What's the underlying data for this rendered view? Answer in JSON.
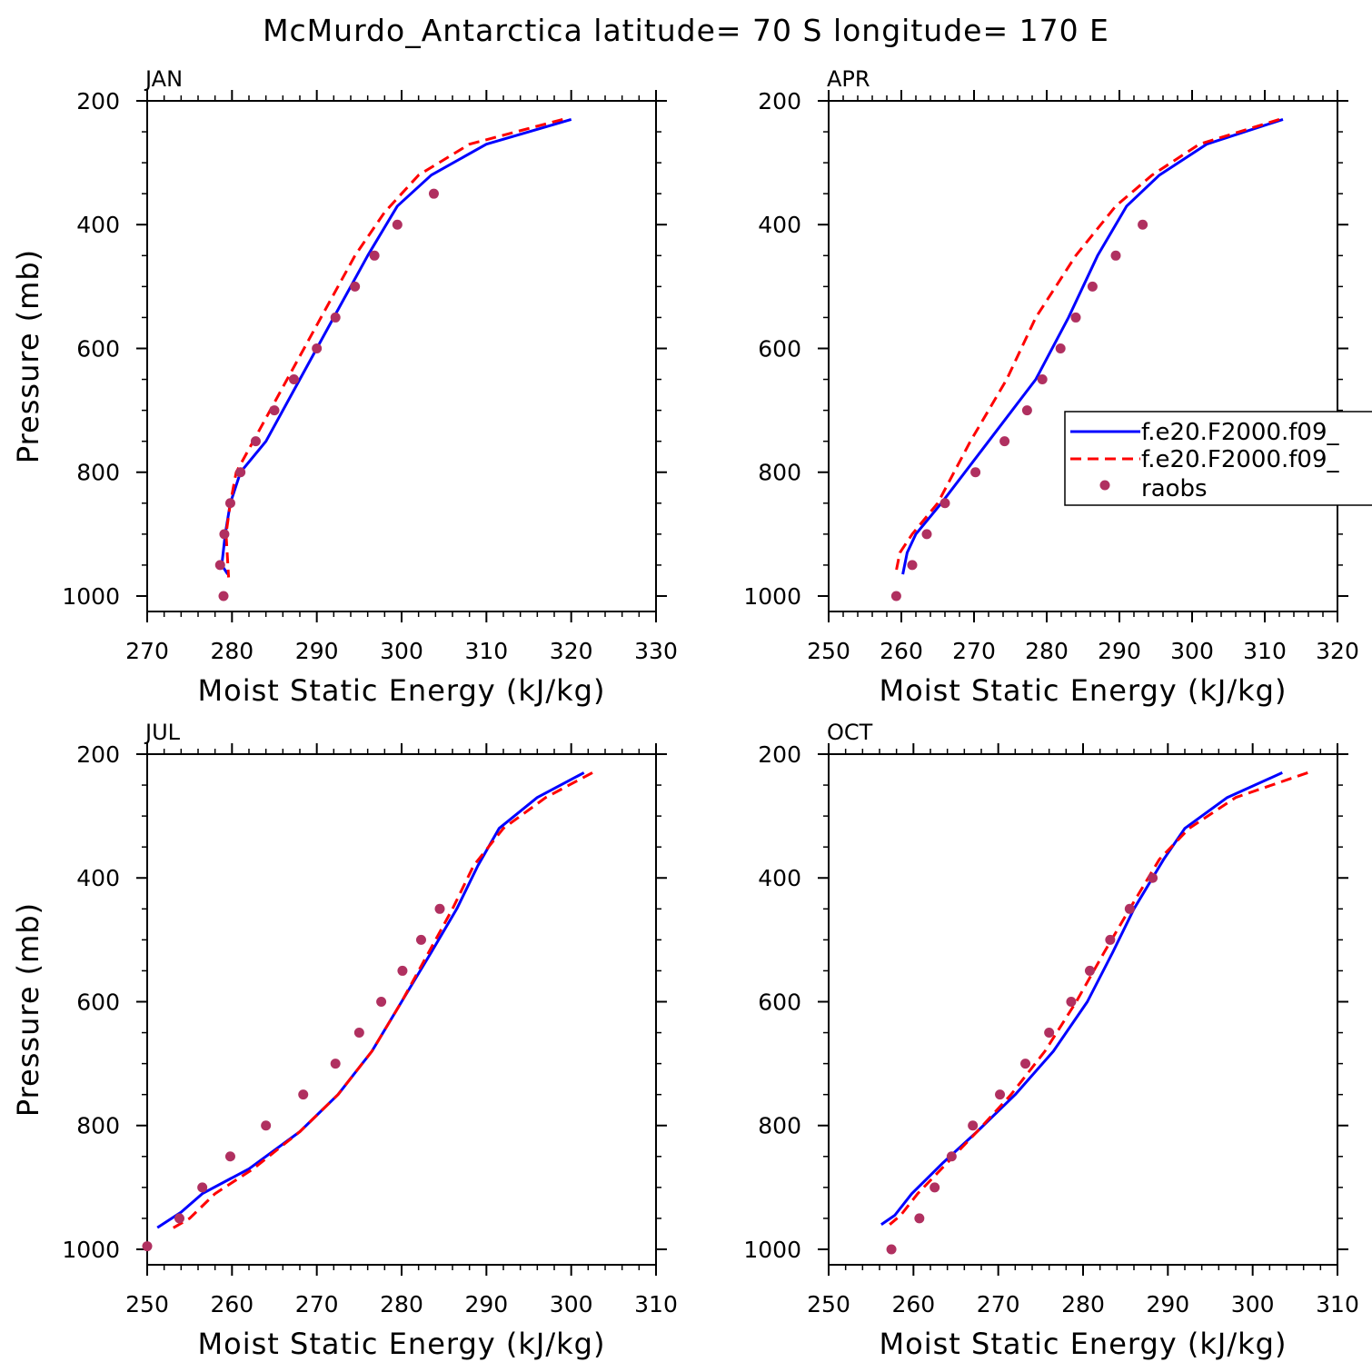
{
  "title": "McMurdo_Antarctica  latitude= 70 S longitude= 170 E",
  "colors": {
    "series1": "#0000ff",
    "series2": "#ff0000",
    "raobs": "#b03060"
  },
  "legend": {
    "entries": [
      "f.e20.F2000.f09_",
      "f.e20.F2000.f09_",
      "raobs"
    ],
    "placement": "right-middle of APR panel"
  },
  "chart_data": [
    {
      "type": "line",
      "panel": "JAN",
      "xlabel": "Moist Static Energy (kJ/kg)",
      "ylabel": "Pressure (mb)",
      "xlim": [
        270,
        330
      ],
      "ylim": [
        1025,
        200
      ],
      "xticks": [
        270,
        280,
        290,
        300,
        310,
        320,
        330
      ],
      "yticks": [
        200,
        400,
        600,
        800,
        1000
      ],
      "y_inverted": true,
      "series": [
        {
          "style": "solid",
          "color": "#0000ff",
          "x": [
            320,
            310,
            303.5,
            299.5,
            296,
            292,
            288,
            284,
            281,
            279.8,
            279.2,
            278.8,
            279.5
          ],
          "y": [
            230,
            270,
            320,
            370,
            450,
            550,
            650,
            750,
            800,
            850,
            900,
            950,
            965
          ]
        },
        {
          "style": "dashed",
          "color": "#ff0000",
          "x": [
            319,
            308,
            302,
            298,
            294.5,
            290.5,
            286.5,
            282.5,
            280.5,
            279.8,
            279.3,
            279.6
          ],
          "y": [
            230,
            270,
            320,
            380,
            450,
            550,
            650,
            750,
            800,
            850,
            900,
            970
          ]
        },
        {
          "style": "markers",
          "color": "#b03060",
          "x": [
            303.8,
            299.5,
            296.8,
            294.5,
            292.2,
            290,
            287.3,
            285,
            282.8,
            281,
            279.8,
            279.1,
            278.6,
            279
          ],
          "y": [
            350,
            400,
            450,
            500,
            550,
            600,
            650,
            700,
            750,
            800,
            850,
            900,
            950,
            1000
          ]
        }
      ]
    },
    {
      "type": "line",
      "panel": "APR",
      "xlabel": "Moist Static Energy (kJ/kg)",
      "ylabel": "",
      "xlim": [
        250,
        320
      ],
      "ylim": [
        1025,
        200
      ],
      "xticks": [
        250,
        260,
        270,
        280,
        290,
        300,
        310,
        320
      ],
      "yticks": [
        200,
        400,
        600,
        800,
        1000
      ],
      "y_inverted": true,
      "series": [
        {
          "style": "solid",
          "color": "#0000ff",
          "x": [
            312.5,
            302,
            295.5,
            291,
            287,
            283,
            278.5,
            272,
            265.5,
            262,
            260.8,
            260.2
          ],
          "y": [
            230,
            270,
            320,
            370,
            450,
            550,
            650,
            750,
            850,
            900,
            930,
            965
          ]
        },
        {
          "style": "dashed",
          "color": "#ff0000",
          "x": [
            312,
            301,
            294.5,
            289.5,
            284,
            278.5,
            274.5,
            269.5,
            265,
            261.5,
            259.8,
            259.2
          ],
          "y": [
            230,
            270,
            320,
            370,
            450,
            550,
            650,
            750,
            850,
            900,
            930,
            965
          ]
        },
        {
          "style": "markers",
          "color": "#b03060",
          "x": [
            293.2,
            289.5,
            286.3,
            284,
            281.9,
            279.4,
            277.3,
            274.2,
            270.2,
            266,
            263.5,
            261.5,
            259.3
          ],
          "y": [
            400,
            450,
            500,
            550,
            600,
            650,
            700,
            750,
            800,
            850,
            900,
            950,
            1000
          ]
        }
      ]
    },
    {
      "type": "line",
      "panel": "JUL",
      "xlabel": "Moist Static Energy (kJ/kg)",
      "ylabel": "Pressure (mb)",
      "xlim": [
        250,
        310
      ],
      "ylim": [
        1025,
        200
      ],
      "xticks": [
        250,
        260,
        270,
        280,
        290,
        300,
        310
      ],
      "yticks": [
        200,
        400,
        600,
        800,
        1000
      ],
      "y_inverted": true,
      "series": [
        {
          "style": "solid",
          "color": "#0000ff",
          "x": [
            301.5,
            296,
            291.5,
            289,
            286.5,
            283.5,
            280,
            276.5,
            272.5,
            268,
            262,
            256.5,
            254,
            251.2
          ],
          "y": [
            230,
            270,
            320,
            380,
            450,
            520,
            600,
            680,
            750,
            810,
            870,
            910,
            940,
            965
          ]
        },
        {
          "style": "dashed",
          "color": "#ff0000",
          "x": [
            302.5,
            297,
            292,
            288.5,
            286,
            283.2,
            280,
            276.5,
            272.5,
            268,
            262.5,
            258,
            255,
            252.5
          ],
          "y": [
            230,
            270,
            320,
            380,
            450,
            520,
            600,
            680,
            750,
            810,
            870,
            910,
            950,
            970
          ]
        },
        {
          "style": "markers",
          "color": "#b03060",
          "x": [
            284.5,
            282.3,
            280.1,
            277.6,
            275,
            272.2,
            268.4,
            264,
            259.8,
            256.5,
            253.8,
            250
          ],
          "y": [
            450,
            500,
            550,
            600,
            650,
            700,
            750,
            800,
            850,
            900,
            950,
            995
          ]
        }
      ]
    },
    {
      "type": "line",
      "panel": "OCT",
      "xlabel": "Moist Static Energy (kJ/kg)",
      "ylabel": "",
      "xlim": [
        250,
        310
      ],
      "ylim": [
        1025,
        200
      ],
      "xticks": [
        250,
        260,
        270,
        280,
        290,
        300,
        310
      ],
      "yticks": [
        200,
        400,
        600,
        800,
        1000
      ],
      "y_inverted": true,
      "series": [
        {
          "style": "solid",
          "color": "#0000ff",
          "x": [
            303.5,
            297,
            292,
            289.5,
            286,
            283.5,
            280.5,
            276.5,
            272,
            267.5,
            263.5,
            259.8,
            257.8,
            256.2
          ],
          "y": [
            230,
            270,
            320,
            370,
            450,
            520,
            600,
            680,
            750,
            810,
            860,
            910,
            945,
            960
          ]
        },
        {
          "style": "dashed",
          "color": "#ff0000",
          "x": [
            306.5,
            298,
            292.5,
            289,
            285.5,
            282.5,
            279.2,
            275.5,
            271.5,
            267.5,
            264,
            260.5,
            258.5,
            257.2
          ],
          "y": [
            230,
            270,
            320,
            370,
            450,
            520,
            600,
            680,
            750,
            810,
            860,
            910,
            945,
            960
          ]
        },
        {
          "style": "markers",
          "color": "#b03060",
          "x": [
            288.2,
            285.5,
            283.2,
            280.8,
            278.6,
            276,
            273.2,
            270.2,
            267,
            264.5,
            262.5,
            260.7,
            257.4
          ],
          "y": [
            400,
            450,
            500,
            550,
            600,
            650,
            700,
            750,
            800,
            850,
            900,
            950,
            1000
          ]
        }
      ]
    }
  ]
}
